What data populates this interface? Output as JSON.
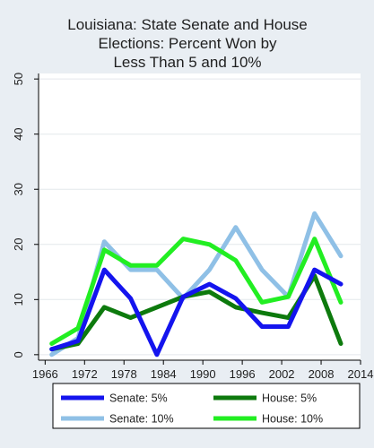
{
  "chart_data": {
    "type": "line",
    "title_lines": [
      "Louisiana: State Senate and House",
      "Elections: Percent Won by",
      "Less Than 5 and 10%"
    ],
    "xlabel": "",
    "ylabel": "",
    "x_ticks": [
      1966,
      1972,
      1978,
      1984,
      1990,
      1996,
      2002,
      2008,
      2014
    ],
    "y_ticks": [
      0,
      10,
      20,
      30,
      40,
      50
    ],
    "xlim": [
      1965,
      2014
    ],
    "ylim": [
      -1,
      51
    ],
    "grid": true,
    "legend_position": "bottom",
    "x": [
      1967,
      1971,
      1975,
      1979,
      1983,
      1987,
      1991,
      1995,
      1999,
      2003,
      2007,
      2011
    ],
    "series": [
      {
        "name": "Senate: 5%",
        "color": "#1414ee",
        "values": [
          1,
          2.5,
          15.4,
          10.2,
          0,
          10.5,
          12.8,
          10.2,
          5.1,
          5.1,
          15.4,
          12.8
        ]
      },
      {
        "name": "House: 5%",
        "color": "#0d7a0d",
        "values": [
          1,
          2,
          8.6,
          6.7,
          8.6,
          10.5,
          11.4,
          8.6,
          7.6,
          6.7,
          14.3,
          2
        ]
      },
      {
        "name": "Senate: 10%",
        "color": "#8fc0e6",
        "values": [
          0,
          3,
          20.5,
          15.4,
          15.4,
          10.2,
          15.4,
          23.1,
          15.4,
          10.5,
          25.6,
          17.9
        ]
      },
      {
        "name": "House: 10%",
        "color": "#22ee22",
        "values": [
          2,
          4.8,
          19,
          16.2,
          16.2,
          21,
          20,
          17.1,
          9.5,
          10.5,
          21,
          9.5
        ]
      }
    ]
  }
}
